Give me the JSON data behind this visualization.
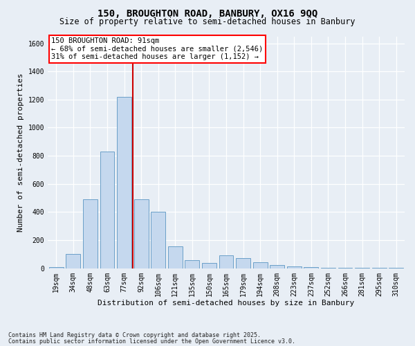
{
  "title_line1": "150, BROUGHTON ROAD, BANBURY, OX16 9QQ",
  "title_line2": "Size of property relative to semi-detached houses in Banbury",
  "xlabel": "Distribution of semi-detached houses by size in Banbury",
  "ylabel": "Number of semi-detached properties",
  "categories": [
    "19sqm",
    "34sqm",
    "48sqm",
    "63sqm",
    "77sqm",
    "92sqm",
    "106sqm",
    "121sqm",
    "135sqm",
    "150sqm",
    "165sqm",
    "179sqm",
    "194sqm",
    "208sqm",
    "223sqm",
    "237sqm",
    "252sqm",
    "266sqm",
    "281sqm",
    "295sqm",
    "310sqm"
  ],
  "values": [
    5,
    100,
    490,
    830,
    1220,
    490,
    400,
    155,
    55,
    35,
    90,
    70,
    40,
    20,
    10,
    5,
    3,
    2,
    1,
    1,
    1
  ],
  "bar_color": "#c5d8ee",
  "bar_edge_color": "#6a9fc8",
  "red_line_x": 4.5,
  "highlight_color": "#cc0000",
  "property_label": "150 BROUGHTON ROAD: 91sqm",
  "smaller_pct": "68% of semi-detached houses are smaller (2,546)",
  "larger_pct": "31% of semi-detached houses are larger (1,152)",
  "ylim": [
    0,
    1650
  ],
  "yticks": [
    0,
    200,
    400,
    600,
    800,
    1000,
    1200,
    1400,
    1600
  ],
  "background_color": "#e8eef5",
  "plot_background": "#e8eef5",
  "footer_line1": "Contains HM Land Registry data © Crown copyright and database right 2025.",
  "footer_line2": "Contains public sector information licensed under the Open Government Licence v3.0.",
  "title_fontsize": 10,
  "subtitle_fontsize": 8.5,
  "axis_label_fontsize": 8,
  "tick_fontsize": 7,
  "annot_fontsize": 7.5,
  "footer_fontsize": 6
}
